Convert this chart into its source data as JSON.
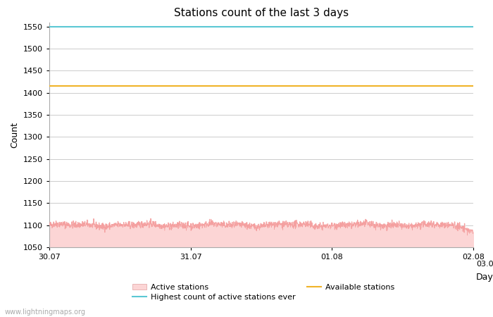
{
  "title": "Stations count of the last 3 days",
  "xlabel": "Day",
  "ylabel": "Count",
  "ylim": [
    1050,
    1560
  ],
  "yticks": [
    1050,
    1100,
    1150,
    1200,
    1250,
    1300,
    1350,
    1400,
    1450,
    1500,
    1550
  ],
  "x_start": 0,
  "x_end": 72,
  "xtick_positions": [
    0,
    24,
    48,
    72
  ],
  "xtick_labels": [
    "30.07",
    "31.07",
    "01.08",
    "02.08"
  ],
  "highest_ever": 1550,
  "available_stations": 1415,
  "active_mean": 1100,
  "active_fill_color": "#fcd5d5",
  "active_line_color": "#f4a0a0",
  "highest_line_color": "#5bc8d4",
  "available_line_color": "#f0b429",
  "background_color": "#ffffff",
  "grid_color": "#cccccc",
  "watermark": "www.lightningmaps.org",
  "title_fontsize": 11,
  "axis_fontsize": 9,
  "tick_fontsize": 8,
  "legend_fontsize": 8
}
